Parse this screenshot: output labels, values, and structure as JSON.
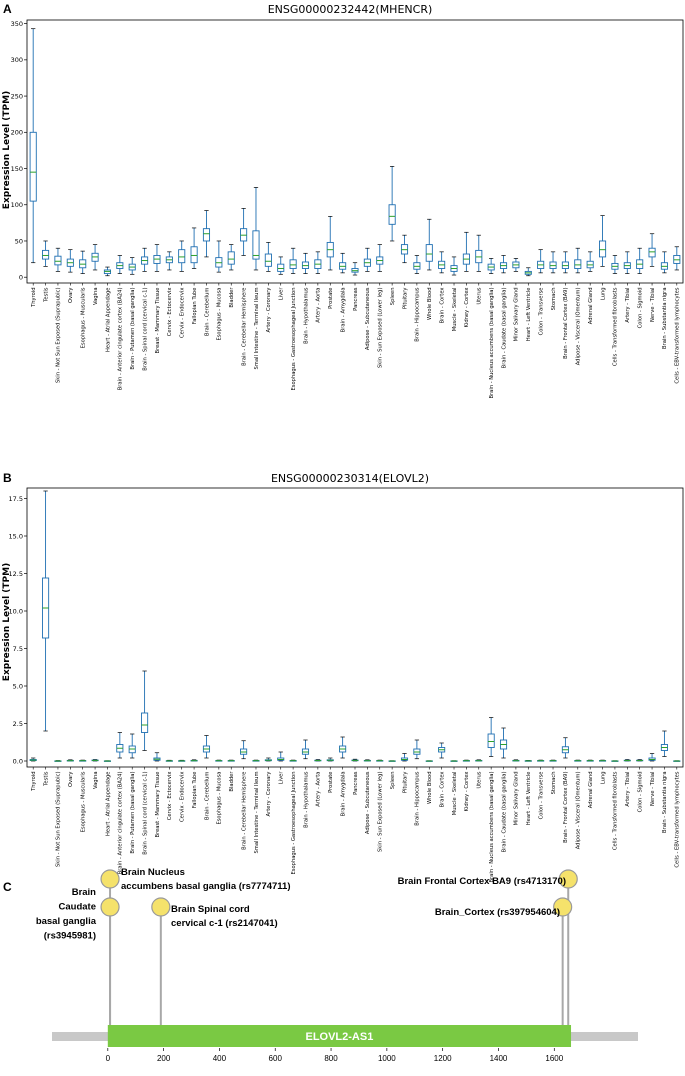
{
  "panels": {
    "a_letter": "A",
    "b_letter": "B",
    "c_letter": "C"
  },
  "colors": {
    "box": "#1f6fb2",
    "median": "#2ca02c",
    "gene": "#7ac943",
    "track": "#c8c8c8",
    "lollipop": "#f5e26b",
    "lollipop_stroke": "#9a9a9a"
  },
  "chart_data": [
    {
      "type": "boxplot",
      "title": "ENSG00000232442(MHENCR)",
      "ylabel": "Expression Level (TPM)",
      "ylim": [
        -8,
        355
      ],
      "yticks": [
        0,
        50,
        100,
        150,
        200,
        250,
        300,
        350
      ],
      "categories": [
        "Thyroid",
        "Testis",
        "Skin - Not Sun Exposed (Suprapubic)",
        "Ovary",
        "Esophagus - Muscularis",
        "Vagina",
        "Heart - Atrial Appendage",
        "Brain - Anterior cingulate cortex (BA24)",
        "Brain - Putamen (basal ganglia)",
        "Brain - Spinal cord (cervical c-1)",
        "Breast - Mammary Tissue",
        "Cervix - Ectocervix",
        "Cervix - Endocervix",
        "Fallopian Tube",
        "Brain - Cerebellum",
        "Esophagus - Mucosa",
        "Bladder",
        "Brain - Cerebellar Hemisphere",
        "Small Intestine - Terminal Ileum",
        "Artery - Coronary",
        "Liver",
        "Esophagus - Gastroesophageal Junction",
        "Brain - Hypothalamus",
        "Artery - Aorta",
        "Prostate",
        "Brain - Amygdala",
        "Pancreas",
        "Adipose - Subcutaneous",
        "Skin - Sun Exposed (Lower leg)",
        "Spleen",
        "Pituitary",
        "Brain - Hippocampus",
        "Whole Blood",
        "Brain - Cortex",
        "Muscle - Skeletal",
        "Kidney - Cortex",
        "Uterus",
        "Brain - Nucleus accumbens (basal ganglia)",
        "Brain - Caudate (basal ganglia)",
        "Minor Salivary Gland",
        "Heart - Left Ventricle",
        "Colon - Transverse",
        "Stomach",
        "Brain - Frontal Cortex (BA9)",
        "Adipose - Visceral (Omentum)",
        "Adrenal Gland",
        "Lung",
        "Cells - Transformed fibroblasts",
        "Artery - Tibial",
        "Colon - Sigmoid",
        "Nerve - Tibial",
        "Brain - Substantia nigra",
        "Cells - EBV-transformed lymphocytes"
      ],
      "boxes": [
        [
          20,
          105,
          145,
          200,
          343
        ],
        [
          15,
          25,
          30,
          37,
          50
        ],
        [
          8,
          17,
          22,
          29,
          40
        ],
        [
          7,
          15,
          20,
          25,
          38
        ],
        [
          5,
          13,
          18,
          24,
          36
        ],
        [
          10,
          22,
          28,
          33,
          45
        ],
        [
          2,
          5,
          8,
          10,
          14
        ],
        [
          5,
          12,
          16,
          20,
          30
        ],
        [
          4,
          10,
          14,
          18,
          27
        ],
        [
          8,
          18,
          23,
          28,
          40
        ],
        [
          8,
          19,
          25,
          30,
          45
        ],
        [
          10,
          20,
          24,
          28,
          35
        ],
        [
          8,
          20,
          28,
          38,
          50
        ],
        [
          12,
          20,
          30,
          42,
          68
        ],
        [
          28,
          50,
          60,
          67,
          92
        ],
        [
          7,
          14,
          20,
          27,
          50
        ],
        [
          10,
          18,
          25,
          35,
          45
        ],
        [
          30,
          50,
          58,
          67,
          95
        ],
        [
          10,
          25,
          30,
          64,
          124
        ],
        [
          8,
          15,
          22,
          32,
          48
        ],
        [
          4,
          8,
          12,
          18,
          28
        ],
        [
          5,
          12,
          17,
          24,
          40
        ],
        [
          5,
          12,
          16,
          21,
          33
        ],
        [
          5,
          12,
          18,
          24,
          35
        ],
        [
          10,
          28,
          38,
          48,
          84
        ],
        [
          6,
          11,
          15,
          20,
          33
        ],
        [
          3,
          7,
          9,
          12,
          20
        ],
        [
          8,
          15,
          20,
          25,
          40
        ],
        [
          8,
          18,
          23,
          28,
          45
        ],
        [
          50,
          73,
          84,
          100,
          153
        ],
        [
          20,
          32,
          38,
          45,
          58
        ],
        [
          5,
          11,
          15,
          20,
          30
        ],
        [
          10,
          22,
          32,
          45,
          80
        ],
        [
          6,
          12,
          17,
          22,
          35
        ],
        [
          3,
          8,
          12,
          16,
          28
        ],
        [
          8,
          18,
          25,
          32,
          62
        ],
        [
          8,
          20,
          28,
          37,
          58
        ],
        [
          5,
          10,
          14,
          18,
          26
        ],
        [
          6,
          12,
          16,
          20,
          30
        ],
        [
          8,
          13,
          17,
          21,
          26
        ],
        [
          2,
          4,
          6,
          8,
          13
        ],
        [
          6,
          12,
          17,
          22,
          38
        ],
        [
          6,
          12,
          16,
          21,
          35
        ],
        [
          6,
          12,
          16,
          21,
          35
        ],
        [
          6,
          12,
          17,
          24,
          40
        ],
        [
          8,
          13,
          17,
          22,
          35
        ],
        [
          15,
          28,
          38,
          50,
          85
        ],
        [
          5,
          11,
          15,
          19,
          30
        ],
        [
          5,
          12,
          16,
          20,
          35
        ],
        [
          5,
          12,
          18,
          24,
          40
        ],
        [
          15,
          28,
          35,
          40,
          60
        ],
        [
          6,
          11,
          15,
          20,
          35
        ],
        [
          10,
          19,
          24,
          30,
          42
        ]
      ]
    },
    {
      "type": "boxplot",
      "title": "ENSG00000230314(ELOVL2)",
      "ylabel": "Expression Level (TPM)",
      "ylim": [
        -0.4,
        18.2
      ],
      "yticks": [
        0.0,
        2.5,
        5.0,
        7.5,
        10.0,
        12.5,
        15.0,
        17.5
      ],
      "categories": [
        "Thyroid",
        "Testis",
        "Skin - Not Sun Exposed (Suprapubic)",
        "Ovary",
        "Esophagus - Muscularis",
        "Vagina",
        "Heart - Atrial Appendage",
        "Brain - Anterior cingulate cortex (BA24)",
        "Brain - Putamen (basal ganglia)",
        "Brain - Spinal cord (cervical c-1)",
        "Breast - Mammary Tissue",
        "Cervix - Ectocervix",
        "Cervix - Endocervix",
        "Fallopian Tube",
        "Brain - Cerebellum",
        "Esophagus - Mucosa",
        "Bladder",
        "Brain - Cerebellar Hemisphere",
        "Small Intestine - Terminal Ileum",
        "Artery - Coronary",
        "Liver",
        "Esophagus - Gastroesophageal Junction",
        "Brain - Hypothalamus",
        "Artery - Aorta",
        "Prostate",
        "Brain - Amygdala",
        "Pancreas",
        "Adipose - Subcutaneous",
        "Skin - Sun Exposed (Lower leg)",
        "Spleen",
        "Pituitary",
        "Brain - Hippocampus",
        "Whole Blood",
        "Brain - Cortex",
        "Muscle - Skeletal",
        "Kidney - Cortex",
        "Uterus",
        "Brain - Nucleus accumbens (basal ganglia)",
        "Brain - Caudate (basal ganglia)",
        "Minor Salivary Gland",
        "Heart - Left Ventricle",
        "Colon - Transverse",
        "Stomach",
        "Brain - Frontal Cortex (BA9)",
        "Adipose - Visceral (Omentum)",
        "Adrenal Gland",
        "Lung",
        "Cells - Transformed fibroblasts",
        "Artery - Tibial",
        "Colon - Sigmoid",
        "Nerve - Tibial",
        "Brain - Substantia nigra",
        "Cells - EBV-transformed lymphocytes"
      ],
      "boxes": [
        [
          0,
          0.03,
          0.06,
          0.1,
          0.2
        ],
        [
          2.0,
          8.2,
          10.2,
          12.2,
          18.0
        ],
        [
          0,
          0,
          0,
          0.01,
          0.03
        ],
        [
          0,
          0.01,
          0.02,
          0.04,
          0.08
        ],
        [
          0,
          0.01,
          0.02,
          0.03,
          0.06
        ],
        [
          0,
          0.02,
          0.04,
          0.06,
          0.1
        ],
        [
          0,
          0,
          0,
          0.01,
          0.02
        ],
        [
          0.2,
          0.6,
          0.85,
          1.1,
          1.9
        ],
        [
          0.2,
          0.55,
          0.8,
          1.0,
          1.8
        ],
        [
          0.7,
          1.9,
          2.4,
          3.2,
          6.0
        ],
        [
          0,
          0.05,
          0.12,
          0.2,
          0.55
        ],
        [
          0,
          0,
          0.01,
          0.02,
          0.05
        ],
        [
          0,
          0,
          0.01,
          0.02,
          0.05
        ],
        [
          0,
          0.01,
          0.02,
          0.04,
          0.08
        ],
        [
          0.2,
          0.6,
          0.8,
          1.0,
          1.7
        ],
        [
          0,
          0.01,
          0.02,
          0.03,
          0.06
        ],
        [
          0,
          0.01,
          0.02,
          0.03,
          0.06
        ],
        [
          0.15,
          0.45,
          0.6,
          0.8,
          1.35
        ],
        [
          0,
          0.01,
          0.02,
          0.03,
          0.06
        ],
        [
          0,
          0.02,
          0.05,
          0.08,
          0.2
        ],
        [
          0,
          0.05,
          0.1,
          0.2,
          0.6
        ],
        [
          0,
          0.01,
          0.02,
          0.03,
          0.06
        ],
        [
          0.15,
          0.45,
          0.6,
          0.8,
          1.4
        ],
        [
          0,
          0.02,
          0.03,
          0.05,
          0.1
        ],
        [
          0,
          0.02,
          0.05,
          0.08,
          0.2
        ],
        [
          0.2,
          0.6,
          0.8,
          1.0,
          1.6
        ],
        [
          0,
          0.02,
          0.04,
          0.06,
          0.12
        ],
        [
          0,
          0.01,
          0.02,
          0.04,
          0.08
        ],
        [
          0,
          0.01,
          0.02,
          0.03,
          0.06
        ],
        [
          0,
          0,
          0,
          0.01,
          0.02
        ],
        [
          0,
          0.05,
          0.1,
          0.2,
          0.5
        ],
        [
          0.15,
          0.45,
          0.6,
          0.8,
          1.4
        ],
        [
          0,
          0,
          0,
          0.01,
          0.02
        ],
        [
          0.2,
          0.6,
          0.75,
          0.9,
          1.2
        ],
        [
          0,
          0,
          0,
          0.01,
          0.02
        ],
        [
          0,
          0.01,
          0.02,
          0.03,
          0.06
        ],
        [
          0,
          0.01,
          0.02,
          0.04,
          0.08
        ],
        [
          0.3,
          0.9,
          1.3,
          1.8,
          2.9
        ],
        [
          0.2,
          0.8,
          1.1,
          1.4,
          2.2
        ],
        [
          0,
          0.01,
          0.02,
          0.04,
          0.08
        ],
        [
          0,
          0,
          0.01,
          0.02,
          0.04
        ],
        [
          0,
          0.01,
          0.02,
          0.03,
          0.06
        ],
        [
          0,
          0.01,
          0.02,
          0.03,
          0.06
        ],
        [
          0.2,
          0.55,
          0.75,
          0.95,
          1.55
        ],
        [
          0,
          0.01,
          0.02,
          0.03,
          0.06
        ],
        [
          0,
          0.01,
          0.02,
          0.03,
          0.06
        ],
        [
          0,
          0.01,
          0.02,
          0.03,
          0.06
        ],
        [
          0,
          0,
          0,
          0.01,
          0.02
        ],
        [
          0,
          0.02,
          0.03,
          0.05,
          0.1
        ],
        [
          0,
          0.02,
          0.03,
          0.05,
          0.1
        ],
        [
          0,
          0.05,
          0.1,
          0.2,
          0.5
        ],
        [
          0.3,
          0.7,
          0.9,
          1.1,
          2.0
        ],
        [
          0,
          0,
          0,
          0.01,
          0.02
        ]
      ]
    },
    {
      "type": "lollipop",
      "gene": "ELOVL2-AS1",
      "gene_range": [
        0,
        1660
      ],
      "track_range": [
        -200,
        1900
      ],
      "xlim": [
        -200,
        1900
      ],
      "xticks": [
        0,
        200,
        400,
        600,
        800,
        1000,
        1200,
        1400,
        1600
      ],
      "snps": [
        {
          "pos": 8,
          "stem": "high",
          "label_lines": [
            "Brain Nucleus",
            "accumbens basal ganglia (rs7774711)"
          ]
        },
        {
          "pos": 8,
          "stem": "low",
          "label_lines": [
            "Brain",
            "Caudate",
            "basal ganglia",
            "(rs3945981)"
          ]
        },
        {
          "pos": 190,
          "stem": "low",
          "label_lines": [
            "Brain Spinal cord",
            "cervical c-1 (rs2147041)"
          ]
        },
        {
          "pos": 1650,
          "stem": "high",
          "label_lines": [
            "Brain Frontal Cortex BA9 (rs4713170)"
          ]
        },
        {
          "pos": 1630,
          "stem": "low",
          "label_lines": [
            "Brain_Cortex (rs397954604)"
          ]
        }
      ]
    }
  ]
}
